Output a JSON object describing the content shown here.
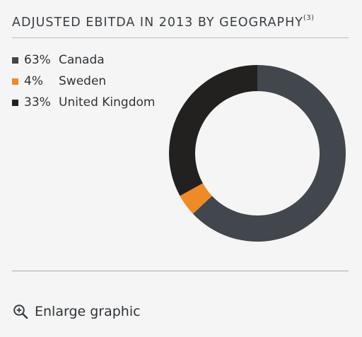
{
  "title": "ADJUSTED EBITDA IN 2013 BY GEOGRAPHY",
  "footnote": "(3)",
  "enlarge": {
    "label": "Enlarge graphic",
    "icon": "zoom-in-icon"
  },
  "chart_data": {
    "type": "pie",
    "subtype": "donut",
    "title": "ADJUSTED EBITDA IN 2013 BY GEOGRAPHY",
    "categories": [
      "Canada",
      "Sweden",
      "United Kingdom"
    ],
    "values": [
      63,
      4,
      33
    ],
    "labels": [
      "63%",
      "4%",
      "33%"
    ],
    "colors": [
      "#42464d",
      "#ef8a26",
      "#232120"
    ],
    "legend_placement": "top-left"
  }
}
